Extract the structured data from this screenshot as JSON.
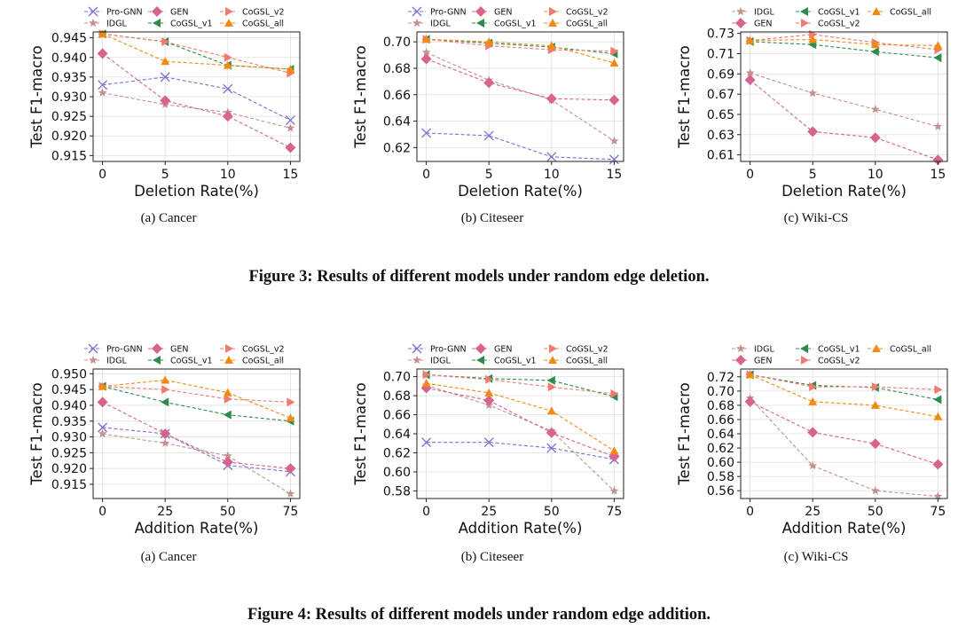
{
  "colors": {
    "Pro-GNN": "#7b6fd0",
    "IDGL": "#c49090",
    "GEN": "#d6648f",
    "CoGSL_v1": "#2e8b4e",
    "CoGSL_v2": "#f07a6e",
    "CoGSL_all": "#f08a14"
  },
  "markers": {
    "Pro-GNN": "x",
    "IDGL": "star",
    "GEN": "diamond",
    "CoGSL_v1": "tri-left",
    "CoGSL_v2": "tri-right",
    "CoGSL_all": "tri-up"
  },
  "figures": [
    {
      "caption": "Figure 3: Results of different models under random edge deletion."
    },
    {
      "caption": "Figure 4: Results of different models under random edge addition."
    }
  ],
  "chart_data": [
    {
      "type": "line",
      "subcaption": "(a) Cancer",
      "xlabel": "Deletion Rate(%)",
      "ylabel": "Test F1-macro",
      "x": [
        0,
        5,
        10,
        15
      ],
      "xticks": [
        "0",
        "5",
        "10",
        "15"
      ],
      "yticks": [
        0.915,
        0.92,
        0.925,
        0.93,
        0.935,
        0.94,
        0.945
      ],
      "ytick_labels": [
        "0.915",
        "0.920",
        "0.925",
        "0.930",
        "0.935",
        "0.940",
        "0.945"
      ],
      "ylim": [
        0.9135,
        0.9465
      ],
      "legend": [
        [
          "Pro-GNN",
          "GEN",
          "CoGSL_v2"
        ],
        [
          "IDGL",
          "CoGSL_v1",
          "CoGSL_all"
        ]
      ],
      "series": [
        {
          "name": "Pro-GNN",
          "values": [
            0.933,
            0.935,
            0.932,
            0.924
          ]
        },
        {
          "name": "IDGL",
          "values": [
            0.931,
            0.928,
            0.926,
            0.922
          ]
        },
        {
          "name": "GEN",
          "values": [
            0.941,
            0.929,
            0.925,
            0.917
          ]
        },
        {
          "name": "CoGSL_v1",
          "values": [
            0.946,
            0.944,
            0.938,
            0.937
          ]
        },
        {
          "name": "CoGSL_v2",
          "values": [
            0.946,
            0.944,
            0.94,
            0.936
          ]
        },
        {
          "name": "CoGSL_all",
          "values": [
            0.946,
            0.939,
            0.938,
            0.937
          ]
        }
      ]
    },
    {
      "type": "line",
      "subcaption": "(b) Citeseer",
      "xlabel": "Deletion Rate(%)",
      "ylabel": "Test F1-macro",
      "x": [
        0,
        5,
        10,
        15
      ],
      "xticks": [
        "0",
        "5",
        "10",
        "15"
      ],
      "yticks": [
        0.62,
        0.64,
        0.66,
        0.68,
        0.7
      ],
      "ytick_labels": [
        "0.62",
        "0.64",
        "0.66",
        "0.68",
        "0.70"
      ],
      "ylim": [
        0.6095,
        0.7075
      ],
      "legend": [
        [
          "Pro-GNN",
          "GEN",
          "CoGSL_v2"
        ],
        [
          "IDGL",
          "CoGSL_v1",
          "CoGSL_all"
        ]
      ],
      "series": [
        {
          "name": "Pro-GNN",
          "values": [
            0.631,
            0.629,
            0.613,
            0.611
          ]
        },
        {
          "name": "IDGL",
          "values": [
            0.692,
            0.671,
            0.656,
            0.625
          ]
        },
        {
          "name": "GEN",
          "values": [
            0.687,
            0.669,
            0.657,
            0.656
          ]
        },
        {
          "name": "CoGSL_v1",
          "values": [
            0.702,
            0.699,
            0.696,
            0.691
          ]
        },
        {
          "name": "CoGSL_v2",
          "values": [
            0.702,
            0.697,
            0.694,
            0.693
          ]
        },
        {
          "name": "CoGSL_all",
          "values": [
            0.702,
            0.7,
            0.697,
            0.684
          ]
        }
      ]
    },
    {
      "type": "line",
      "subcaption": "(c) Wiki-CS",
      "xlabel": "Deletion Rate(%)",
      "ylabel": "Test F1-macro",
      "x": [
        0,
        5,
        10,
        15
      ],
      "xticks": [
        "0",
        "5",
        "10",
        "15"
      ],
      "yticks": [
        0.61,
        0.63,
        0.65,
        0.67,
        0.69,
        0.71,
        0.73
      ],
      "ytick_labels": [
        "0.61",
        "0.63",
        "0.65",
        "0.67",
        "0.69",
        "0.71",
        "0.73"
      ],
      "ylim": [
        0.6035,
        0.7315
      ],
      "legend": [
        [
          "IDGL",
          "CoGSL_v1",
          "CoGSL_all"
        ],
        [
          "GEN",
          "CoGSL_v2"
        ]
      ],
      "series": [
        {
          "name": "IDGL",
          "values": [
            0.691,
            0.671,
            0.655,
            0.638
          ]
        },
        {
          "name": "GEN",
          "values": [
            0.684,
            0.633,
            0.627,
            0.605
          ]
        },
        {
          "name": "CoGSL_v1",
          "values": [
            0.722,
            0.719,
            0.712,
            0.706
          ]
        },
        {
          "name": "CoGSL_v2",
          "values": [
            0.723,
            0.729,
            0.721,
            0.714
          ]
        },
        {
          "name": "CoGSL_all",
          "values": [
            0.723,
            0.724,
            0.719,
            0.718
          ]
        }
      ]
    },
    {
      "type": "line",
      "subcaption": "(a) Cancer",
      "xlabel": "Addition Rate(%)",
      "ylabel": "Test F1-macro",
      "x": [
        0,
        25,
        50,
        75
      ],
      "xticks": [
        "0",
        "25",
        "50",
        "75"
      ],
      "yticks": [
        0.915,
        0.92,
        0.925,
        0.93,
        0.935,
        0.94,
        0.945,
        0.95
      ],
      "ytick_labels": [
        "0.915",
        "0.920",
        "0.925",
        "0.930",
        "0.935",
        "0.940",
        "0.945",
        "0.950"
      ],
      "ylim": [
        0.9105,
        0.9515
      ],
      "legend": [
        [
          "Pro-GNN",
          "GEN",
          "CoGSL_v2"
        ],
        [
          "IDGL",
          "CoGSL_v1",
          "CoGSL_all"
        ]
      ],
      "series": [
        {
          "name": "Pro-GNN",
          "values": [
            0.933,
            0.931,
            0.921,
            0.919
          ]
        },
        {
          "name": "IDGL",
          "values": [
            0.931,
            0.928,
            0.924,
            0.912
          ]
        },
        {
          "name": "GEN",
          "values": [
            0.941,
            0.931,
            0.922,
            0.92
          ]
        },
        {
          "name": "CoGSL_v1",
          "values": [
            0.946,
            0.941,
            0.937,
            0.935
          ]
        },
        {
          "name": "CoGSL_v2",
          "values": [
            0.946,
            0.945,
            0.942,
            0.941
          ]
        },
        {
          "name": "CoGSL_all",
          "values": [
            0.946,
            0.948,
            0.944,
            0.936
          ]
        }
      ]
    },
    {
      "type": "line",
      "subcaption": "(b) Citeseer",
      "xlabel": "Addition Rate(%)",
      "ylabel": "Test F1-macro",
      "x": [
        0,
        25,
        50,
        75
      ],
      "xticks": [
        "0",
        "25",
        "50",
        "75"
      ],
      "yticks": [
        0.58,
        0.6,
        0.62,
        0.64,
        0.66,
        0.68,
        0.7
      ],
      "ytick_labels": [
        "0.58",
        "0.60",
        "0.62",
        "0.64",
        "0.66",
        "0.68",
        "0.70"
      ],
      "ylim": [
        0.572,
        0.708
      ],
      "legend": [
        [
          "Pro-GNN",
          "GEN",
          "CoGSL_v2"
        ],
        [
          "IDGL",
          "CoGSL_v1",
          "CoGSL_all"
        ]
      ],
      "series": [
        {
          "name": "Pro-GNN",
          "values": [
            0.631,
            0.631,
            0.625,
            0.613
          ]
        },
        {
          "name": "IDGL",
          "values": [
            0.691,
            0.67,
            0.643,
            0.58
          ]
        },
        {
          "name": "GEN",
          "values": [
            0.688,
            0.675,
            0.641,
            0.616
          ]
        },
        {
          "name": "CoGSL_v1",
          "values": [
            0.702,
            0.698,
            0.696,
            0.679
          ]
        },
        {
          "name": "CoGSL_v2",
          "values": [
            0.702,
            0.697,
            0.689,
            0.682
          ]
        },
        {
          "name": "CoGSL_all",
          "values": [
            0.693,
            0.683,
            0.664,
            0.622
          ]
        }
      ]
    },
    {
      "type": "line",
      "subcaption": "(c) Wiki-CS",
      "xlabel": "Addition Rate(%)",
      "ylabel": "Test F1-macro",
      "x": [
        0,
        25,
        50,
        75
      ],
      "xticks": [
        "0",
        "25",
        "50",
        "75"
      ],
      "yticks": [
        0.56,
        0.58,
        0.6,
        0.62,
        0.64,
        0.66,
        0.68,
        0.7,
        0.72
      ],
      "ytick_labels": [
        "0.56",
        "0.58",
        "0.60",
        "0.62",
        "0.64",
        "0.66",
        "0.68",
        "0.70",
        "0.72"
      ],
      "ylim": [
        0.549,
        0.731
      ],
      "legend": [
        [
          "IDGL",
          "CoGSL_v1",
          "CoGSL_all"
        ],
        [
          "GEN",
          "CoGSL_v2"
        ]
      ],
      "series": [
        {
          "name": "IDGL",
          "values": [
            0.69,
            0.595,
            0.56,
            0.552
          ]
        },
        {
          "name": "GEN",
          "values": [
            0.685,
            0.642,
            0.626,
            0.597
          ]
        },
        {
          "name": "CoGSL_v1",
          "values": [
            0.723,
            0.708,
            0.705,
            0.688
          ]
        },
        {
          "name": "CoGSL_v2",
          "values": [
            0.723,
            0.706,
            0.706,
            0.702
          ]
        },
        {
          "name": "CoGSL_all",
          "values": [
            0.723,
            0.685,
            0.68,
            0.664
          ]
        }
      ]
    }
  ]
}
